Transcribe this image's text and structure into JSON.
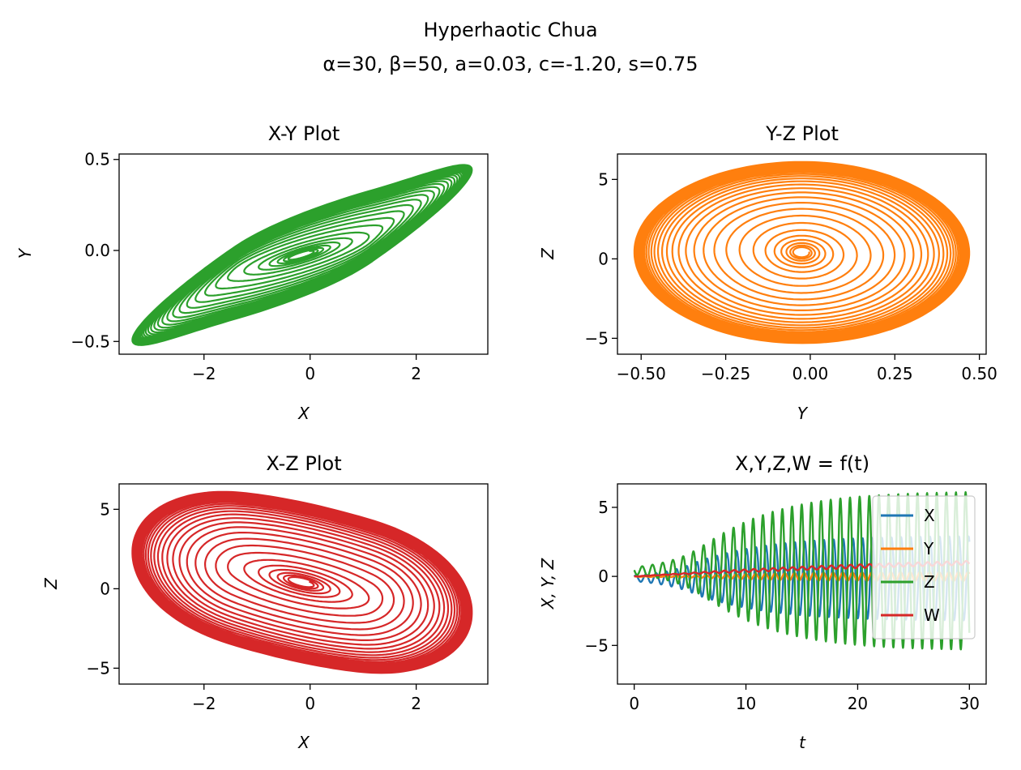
{
  "figure": {
    "suptitle": "Hyperhaotic Chua",
    "param_line": "α=30, β=50, a=0.03, c=-1.20, s=0.75"
  },
  "chart_data": [
    {
      "type": "line",
      "title": "X-Y Plot",
      "xlabel": "X",
      "ylabel": "Y",
      "xlim": [
        -3.6,
        3.35
      ],
      "ylim": [
        -0.57,
        0.53
      ],
      "xticks": [
        -2,
        0,
        2
      ],
      "yticks": [
        -0.5,
        0.0,
        0.5
      ],
      "series": [
        {
          "color": "#2ca02c",
          "plot": "phase_xy"
        }
      ]
    },
    {
      "type": "line",
      "title": "Y-Z Plot",
      "xlabel": "Y",
      "ylabel": "Z",
      "xlim": [
        -0.57,
        0.52
      ],
      "ylim": [
        -6.0,
        6.6
      ],
      "xticks": [
        -0.5,
        -0.25,
        0.0,
        0.25,
        0.5
      ],
      "yticks": [
        -5,
        0,
        5
      ],
      "series": [
        {
          "color": "#ff7f0e",
          "plot": "phase_yz"
        }
      ]
    },
    {
      "type": "line",
      "title": "X-Z Plot",
      "xlabel": "X",
      "ylabel": "Z",
      "xlim": [
        -3.6,
        3.35
      ],
      "ylim": [
        -6.0,
        6.6
      ],
      "xticks": [
        -2,
        0,
        2
      ],
      "yticks": [
        -5,
        0,
        5
      ],
      "series": [
        {
          "color": "#d62728",
          "plot": "phase_xz"
        }
      ]
    },
    {
      "type": "line",
      "title": "X,Y,Z,W = f(t)",
      "xlabel": "t",
      "ylabel": "X, Y, Z",
      "xlim": [
        -1.5,
        31.5
      ],
      "ylim": [
        -7.8,
        6.7
      ],
      "xticks": [
        0,
        10,
        20,
        30
      ],
      "yticks": [
        -5,
        0,
        5
      ],
      "legend": "upper right",
      "series": [
        {
          "name": "X",
          "color": "#1f77b4"
        },
        {
          "name": "Y",
          "color": "#ff7f0e"
        },
        {
          "name": "Z",
          "color": "#2ca02c"
        },
        {
          "name": "W",
          "color": "#d62728"
        }
      ]
    }
  ]
}
